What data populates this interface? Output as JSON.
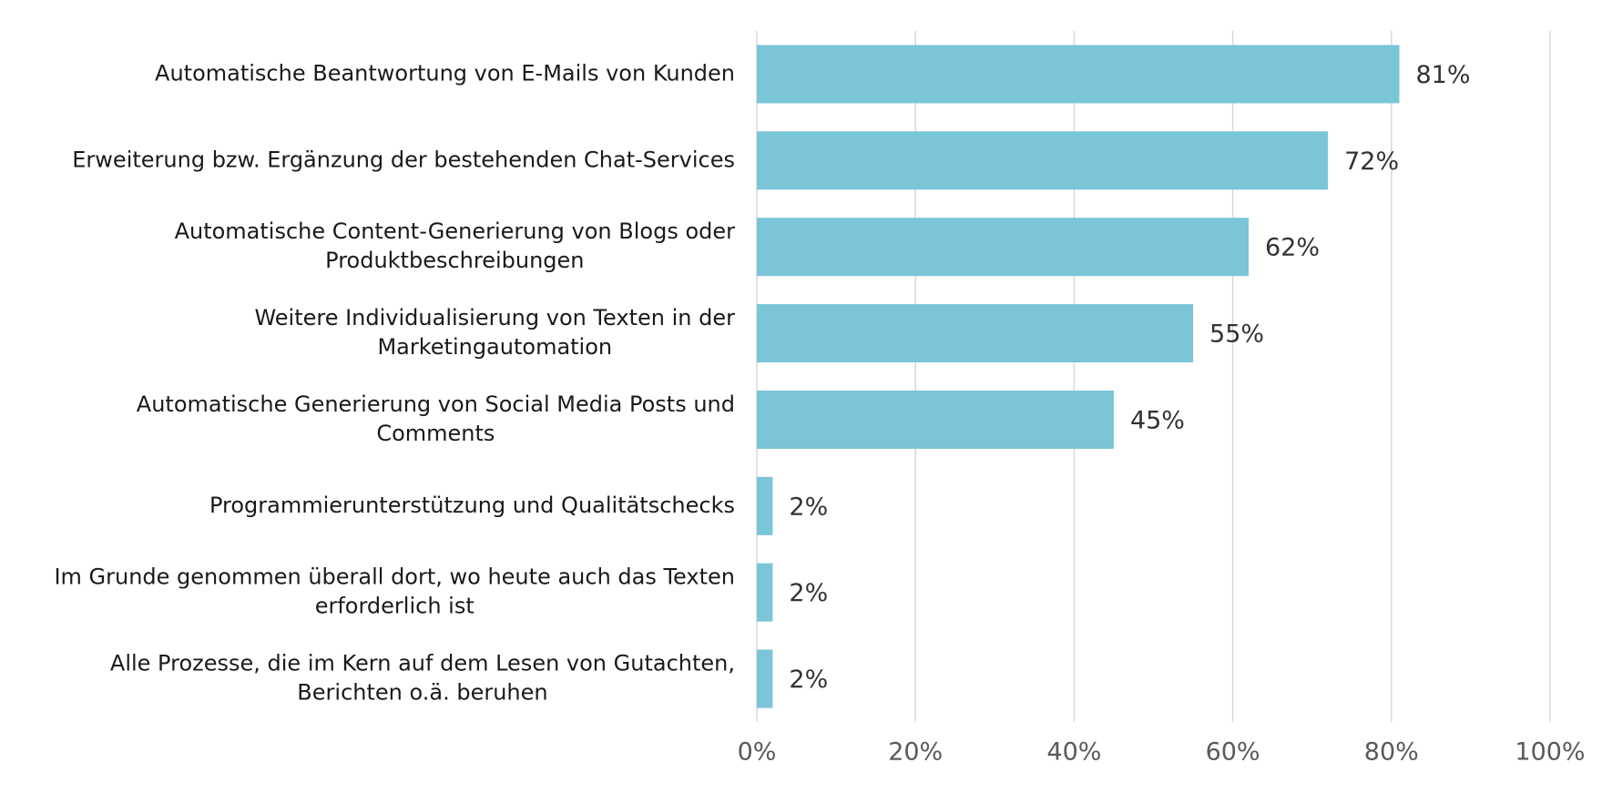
{
  "chart_data": {
    "type": "bar",
    "orientation": "horizontal",
    "categories": [
      [
        "Automatische Beantwortung von E-Mails von Kunden"
      ],
      [
        "Erweiterung bzw. Ergänzung der bestehenden Chat-Services"
      ],
      [
        "Automatische Content-Generierung von Blogs oder",
        "Produktbeschreibungen"
      ],
      [
        "Weitere Individualisierung von Texten in der",
        "Marketingautomation"
      ],
      [
        "Automatische Generierung von Social Media Posts und",
        "Comments"
      ],
      [
        "Programmierunterstützung und Qualitätschecks"
      ],
      [
        "Im Grunde genommen überall dort, wo heute auch das Texten",
        "erforderlich ist"
      ],
      [
        "Alle Prozesse, die im Kern auf dem Lesen von Gutachten,",
        "Berichten o.ä. beruhen"
      ]
    ],
    "values": [
      81,
      72,
      62,
      55,
      45,
      2,
      2,
      2
    ],
    "value_labels": [
      "81%",
      "72%",
      "62%",
      "55%",
      "45%",
      "2%",
      "2%",
      "2%"
    ],
    "color": "#7ac5d8",
    "xlim": [
      0,
      100
    ],
    "xticks": [
      {
        "value": 0,
        "label": "0%"
      },
      {
        "value": 20,
        "label": "20%"
      },
      {
        "value": 40,
        "label": "40%"
      },
      {
        "value": 60,
        "label": "60%"
      },
      {
        "value": 80,
        "label": "80%"
      },
      {
        "value": 100,
        "label": "100%"
      }
    ],
    "grid": true
  }
}
